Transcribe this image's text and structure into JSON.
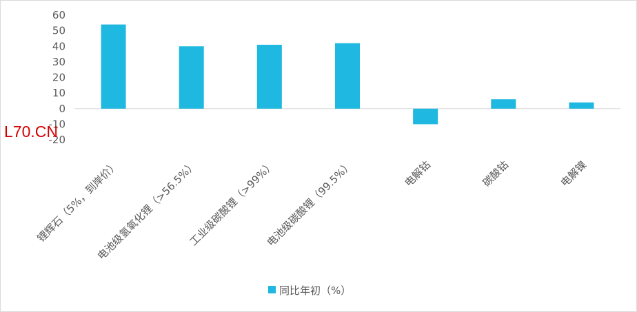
{
  "watermark": "L70.CN",
  "chart_data": {
    "type": "bar",
    "categories": [
      "锂辉石（5%，到岸价）",
      "电池级氢氧化锂（>56.5%）",
      "工业级碳酸锂（>99%）",
      "电池级碳酸锂（99.5%）",
      "电解钴",
      "碳酸钴",
      "电解镍"
    ],
    "series": [
      {
        "name": "同比年初（%）",
        "values": [
          54,
          40,
          41,
          42,
          -10,
          6,
          4
        ]
      }
    ],
    "yticks": [
      "60",
      "50",
      "40",
      "30",
      "20",
      "10",
      "0",
      "-10",
      "-20"
    ],
    "ylim": [
      -20,
      60
    ],
    "grid": false,
    "legend_position": "bottom",
    "colors": {
      "bar": "#1fb8e0",
      "axis": "#d9d9d9",
      "text": "#595959"
    }
  }
}
